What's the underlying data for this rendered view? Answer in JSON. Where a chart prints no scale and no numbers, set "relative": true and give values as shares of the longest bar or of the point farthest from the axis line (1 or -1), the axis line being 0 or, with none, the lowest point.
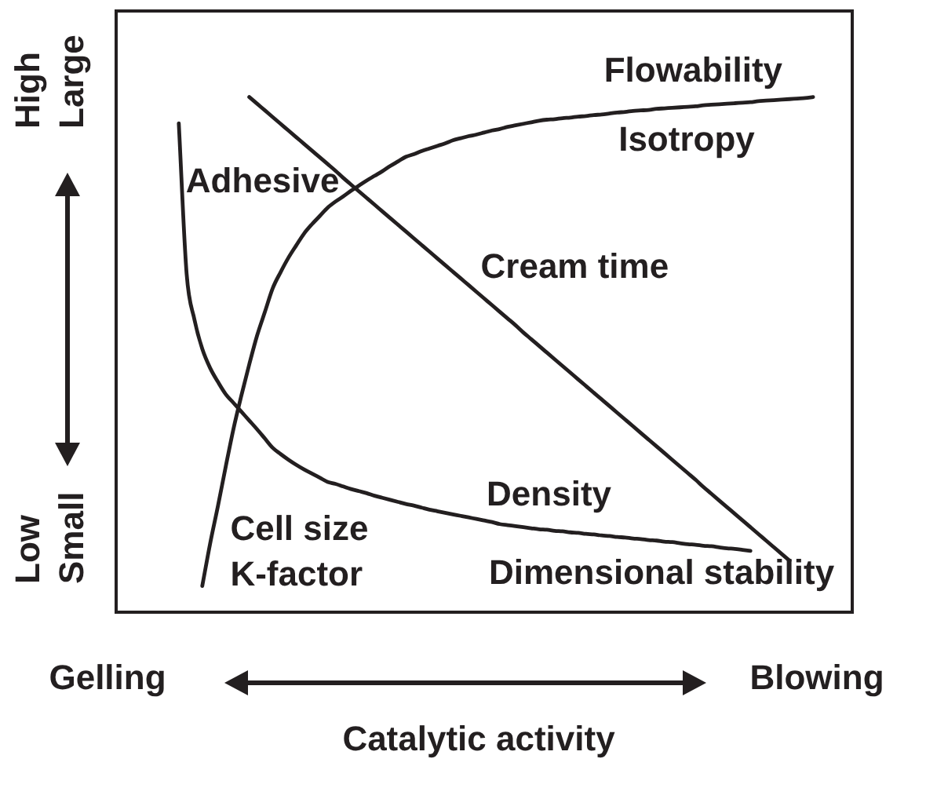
{
  "chart_data": {
    "type": "line",
    "relative": true,
    "xlabel": "Catalytic activity",
    "marker": "none",
    "line_style": "solid",
    "categories": [
      null,
      null,
      null,
      null,
      null,
      null,
      null,
      null,
      null,
      null,
      null,
      null,
      null,
      null,
      null,
      null,
      null,
      null,
      null,
      null,
      null,
      null,
      null,
      null,
      null,
      null,
      null,
      null,
      null,
      null,
      null,
      null,
      null,
      null,
      null,
      null,
      null,
      null,
      null,
      null,
      null,
      null,
      null,
      null,
      null,
      null,
      null,
      null,
      null,
      null,
      null,
      null,
      null,
      null,
      null,
      null,
      null,
      null,
      null,
      null,
      null,
      null,
      null,
      null,
      null,
      null,
      null,
      null,
      null,
      null,
      null,
      null,
      null,
      null,
      null,
      null,
      null,
      null,
      null,
      null,
      null,
      null,
      null,
      null,
      null,
      null,
      null,
      null,
      null,
      null,
      null,
      null,
      null,
      null,
      null
    ],
    "series": [
      {
        "color": "#231f20",
        "values": [
          null,
          null,
          null,
          null,
          null,
          null,
          null,
          null,
          0.949,
          0.657,
          0.568,
          0.511,
          0.474,
          0.447,
          0.423,
          0.406,
          0.389,
          0.372,
          0.355,
          0.337,
          0.319,
          0.307,
          0.296,
          0.286,
          0.277,
          0.269,
          0.261,
          0.253,
          0.249,
          0.244,
          0.239,
          0.235,
          0.231,
          0.226,
          0.222,
          0.218,
          0.214,
          0.21,
          0.207,
          0.203,
          0.199,
          0.196,
          0.193,
          0.19,
          0.187,
          0.184,
          0.181,
          0.178,
          0.175,
          0.171,
          0.169,
          0.167,
          0.165,
          0.163,
          0.161,
          0.16,
          0.158,
          0.157,
          0.155,
          0.154,
          0.152,
          0.151,
          0.149,
          0.148,
          0.146,
          0.145,
          0.143,
          0.142,
          0.14,
          0.139,
          0.137,
          0.136,
          0.134,
          0.132,
          0.131,
          0.129,
          0.128,
          0.126,
          0.124,
          0.123,
          0.121,
          0.119,
          null,
          null,
          null,
          null,
          null,
          null,
          null,
          null,
          null,
          null,
          null,
          null,
          null
        ]
      },
      {
        "color": "#231f20",
        "values": [
          null,
          null,
          null,
          null,
          null,
          null,
          null,
          null,
          null,
          null,
          null,
          0.051,
          0.133,
          0.206,
          0.283,
          0.357,
          0.421,
          0.481,
          0.537,
          0.583,
          0.629,
          0.66,
          0.688,
          0.712,
          0.735,
          0.753,
          0.769,
          0.785,
          0.797,
          0.807,
          0.818,
          0.828,
          0.838,
          0.847,
          0.856,
          0.866,
          0.875,
          0.884,
          0.889,
          0.895,
          0.9,
          0.905,
          0.91,
          0.916,
          0.92,
          0.924,
          0.927,
          0.931,
          0.935,
          0.938,
          0.942,
          0.945,
          0.948,
          0.951,
          0.954,
          0.956,
          0.957,
          0.959,
          0.96,
          0.962,
          0.963,
          0.965,
          0.966,
          0.968,
          0.97,
          0.971,
          0.973,
          0.974,
          0.975,
          0.977,
          0.978,
          0.979,
          0.98,
          0.981,
          0.982,
          0.984,
          0.985,
          0.986,
          0.987,
          0.988,
          0.989,
          0.99,
          0.992,
          0.993,
          0.994,
          0.995,
          0.996,
          0.997,
          0.998,
          1,
          null,
          null,
          null,
          null,
          null
        ]
      },
      {
        "color": "#231f20",
        "values": [
          null,
          null,
          null,
          null,
          null,
          null,
          null,
          null,
          null,
          null,
          null,
          null,
          null,
          null,
          null,
          null,
          null,
          1,
          0.987,
          0.974,
          0.961,
          0.948,
          0.935,
          0.922,
          0.909,
          0.896,
          0.883,
          0.87,
          0.857,
          0.843,
          0.83,
          0.817,
          0.804,
          0.791,
          0.778,
          0.765,
          0.752,
          0.739,
          0.726,
          0.713,
          0.7,
          0.687,
          0.674,
          0.661,
          0.648,
          0.635,
          0.622,
          0.609,
          0.596,
          0.583,
          0.57,
          0.557,
          0.543,
          0.53,
          0.517,
          0.504,
          0.491,
          0.478,
          0.465,
          0.452,
          0.439,
          0.426,
          0.413,
          0.4,
          0.387,
          0.374,
          0.361,
          0.348,
          0.335,
          0.322,
          0.309,
          0.296,
          0.283,
          0.27,
          0.257,
          0.243,
          0.23,
          0.217,
          0.204,
          0.191,
          0.178,
          0.165,
          0.152,
          0.139,
          0.126,
          0.113,
          0.1,
          null,
          null,
          null,
          null,
          null,
          null,
          null,
          null
        ]
      }
    ],
    "annotations": [
      "Gelling",
      "Blowing",
      "High",
      "Large",
      "Low",
      "Small",
      "Flowability",
      "Isotropy",
      "Adhesive",
      "Cream time",
      "Density",
      "Dimensional stability",
      "Cell size",
      "K-factor"
    ]
  }
}
